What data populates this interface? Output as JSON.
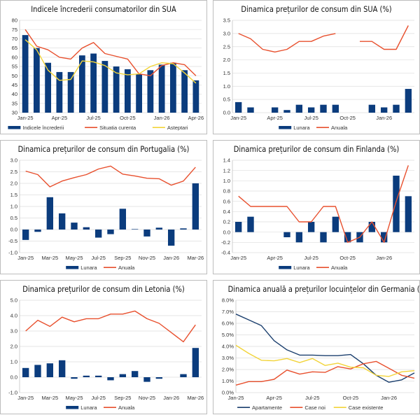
{
  "chart_data": [
    {
      "type": "bar+line",
      "title": "Indicele încrederii consumatorilor din SUA",
      "categories": [
        "Jan-25",
        "Feb-25",
        "Mar-25",
        "Apr-25",
        "May-25",
        "Jun-25",
        "Jul-25",
        "Aug-25",
        "Sep-25",
        "Oct-25",
        "Nov-25",
        "Dec-25",
        "Jan-26",
        "Feb-26",
        "Mar-26",
        "Apr-26"
      ],
      "xtick_labels": [
        "Jan-25",
        "Apr-25",
        "Jul-25",
        "Oct-25",
        "Jan-26",
        "Apr-26"
      ],
      "ylim": [
        30,
        80
      ],
      "yticks": [
        "30",
        "35",
        "40",
        "45",
        "50",
        "55",
        "60",
        "65",
        "70",
        "75",
        "80"
      ],
      "grid": true,
      "legend": "bottom",
      "bars": [
        {
          "name": "Indicele încrederii",
          "color": "#0b3c7d",
          "values": [
            72,
            65,
            57,
            52,
            52,
            61,
            62,
            58,
            55,
            53.5,
            51,
            53,
            56,
            57,
            53,
            47.5
          ]
        }
      ],
      "lines": [
        {
          "name": "Situatia curenta",
          "color": "#e8502e",
          "values": [
            75,
            66,
            64,
            60,
            59,
            65,
            68,
            62,
            60.5,
            59,
            51,
            50,
            55.5,
            57,
            56,
            50
          ]
        },
        {
          "name": "Asteptari",
          "color": "#f2d43a",
          "values": [
            69.5,
            64,
            53,
            47.5,
            48,
            58,
            57.5,
            55.5,
            51.5,
            50.5,
            51,
            55,
            57,
            56.5,
            51.5,
            46
          ]
        }
      ]
    },
    {
      "type": "bar+line",
      "title": "Dinamica prețurilor de consum din SUA (%)",
      "categories": [
        "Jan-25",
        "Feb-25",
        "Mar-25",
        "Apr-25",
        "May-25",
        "Jun-25",
        "Jul-25",
        "Aug-25",
        "Sep-25",
        "Oct-25",
        "Nov-25",
        "Dec-25",
        "Jan-26",
        "Feb-26",
        "Mar-26"
      ],
      "xtick_labels": [
        "Jan-25",
        "Apr-25",
        "Jul-25",
        "Oct-25",
        "Jan-26"
      ],
      "ylim": [
        0,
        3.5
      ],
      "yticks": [
        "0.0",
        "0.5",
        "1.0",
        "1.5",
        "2.0",
        "2.5",
        "3.0",
        "3.5"
      ],
      "grid": true,
      "legend": "bottom",
      "bars": [
        {
          "name": "Lunara",
          "color": "#0b3c7d",
          "values": [
            0.4,
            0.2,
            null,
            0.2,
            0.1,
            0.3,
            0.2,
            0.3,
            0.3,
            null,
            null,
            0.3,
            0.2,
            0.3,
            0.9
          ]
        }
      ],
      "lines": [
        {
          "name": "Anuala",
          "color": "#e8502e",
          "values": [
            3.0,
            2.8,
            2.4,
            2.3,
            2.4,
            2.7,
            2.7,
            2.9,
            3.0,
            null,
            2.7,
            2.7,
            2.4,
            2.4,
            3.3
          ]
        }
      ]
    },
    {
      "type": "bar+line",
      "title": "Dinamica prețurilor de consum din Portugalia (%)",
      "categories": [
        "Jan-25",
        "Feb-25",
        "Mar-25",
        "Apr-25",
        "May-25",
        "Jun-25",
        "Jul-25",
        "Aug-25",
        "Sep-25",
        "Oct-25",
        "Nov-25",
        "Dec-25",
        "Jan-26",
        "Feb-26",
        "Mar-26"
      ],
      "xtick_labels": [
        "Jan-25",
        "Mar-25",
        "May-25",
        "Jul-25",
        "Sep-25",
        "Nov-25",
        "Jan-26",
        "Mar-26"
      ],
      "ylim": [
        -1,
        3
      ],
      "yticks": [
        "-1.0",
        "-0.5",
        "0.0",
        "0.5",
        "1.0",
        "1.5",
        "2.0",
        "2.5",
        "3.0"
      ],
      "grid": true,
      "legend": "bottom",
      "bars": [
        {
          "name": "Lunara",
          "color": "#0b3c7d",
          "values": [
            -0.45,
            -0.1,
            1.4,
            0.7,
            0.3,
            0.1,
            -0.35,
            -0.2,
            0.9,
            0.02,
            -0.3,
            0.08,
            -0.7,
            0.05,
            2.0
          ]
        }
      ],
      "lines": [
        {
          "name": "Anuala",
          "color": "#e8502e",
          "values": [
            2.53,
            2.38,
            1.85,
            2.1,
            2.25,
            2.38,
            2.62,
            2.75,
            2.4,
            2.32,
            2.22,
            2.2,
            1.92,
            2.1,
            2.7
          ]
        }
      ]
    },
    {
      "type": "bar+line",
      "title": "Dinamica prețurilor de consum din Finlanda (%)",
      "categories": [
        "Jan-25",
        "Feb-25",
        "Mar-25",
        "Apr-25",
        "May-25",
        "Jun-25",
        "Jul-25",
        "Aug-25",
        "Sep-25",
        "Oct-25",
        "Nov-25",
        "Dec-25",
        "Jan-26",
        "Feb-26",
        "Mar-26"
      ],
      "xtick_labels": [
        "Jan-25",
        "Apr-25",
        "Jul-25",
        "Oct-25",
        "Jan-26"
      ],
      "ylim": [
        -0.4,
        1.4
      ],
      "yticks": [
        "-0.4",
        "-0.2",
        "0.0",
        "0.2",
        "0.4",
        "0.6",
        "0.8",
        "1.0",
        "1.2",
        "1.4"
      ],
      "grid": true,
      "legend": "bottom",
      "bars": [
        {
          "name": "Lunara",
          "color": "#0b3c7d",
          "values": [
            0.2,
            0.3,
            null,
            null,
            -0.1,
            -0.2,
            0.2,
            -0.2,
            0.3,
            -0.2,
            -0.2,
            0.2,
            -0.2,
            1.1,
            0.7
          ]
        }
      ],
      "lines": [
        {
          "name": "Anuala",
          "color": "#e8502e",
          "values": [
            0.7,
            0.5,
            0.5,
            0.5,
            0.5,
            0.2,
            0.2,
            0.5,
            0.5,
            -0.2,
            -0.1,
            0.2,
            -0.2,
            0.6,
            1.3
          ]
        }
      ]
    },
    {
      "type": "bar+line",
      "title": "Dinamica prețurilor de consum din Letonia (%)",
      "categories": [
        "Jan-25",
        "Feb-25",
        "Mar-25",
        "Apr-25",
        "May-25",
        "Jun-25",
        "Jul-25",
        "Aug-25",
        "Sep-25",
        "Oct-25",
        "Nov-25",
        "Dec-25",
        "Jan-26",
        "Feb-26",
        "Mar-26"
      ],
      "xtick_labels": [
        "Jan-25",
        "Mar-25",
        "May-25",
        "Jul-25",
        "Sep-25",
        "Nov-25",
        "Jan-26",
        "Mar-26"
      ],
      "ylim": [
        -1,
        5
      ],
      "yticks": [
        "-1.0",
        "0.0",
        "1.0",
        "2.0",
        "3.0",
        "4.0",
        "5.0"
      ],
      "grid": true,
      "legend": "bottom",
      "bars": [
        {
          "name": "Lunara",
          "color": "#0b3c7d",
          "values": [
            0.6,
            0.8,
            0.9,
            1.1,
            -0.1,
            0.1,
            0.1,
            -0.2,
            0.2,
            0.4,
            -0.3,
            -0.1,
            null,
            0.2,
            1.9
          ]
        }
      ],
      "lines": [
        {
          "name": "Anuala",
          "color": "#e8502e",
          "values": [
            3.0,
            3.7,
            3.3,
            3.9,
            3.6,
            3.8,
            3.8,
            4.1,
            4.1,
            4.3,
            3.8,
            3.5,
            2.9,
            2.3,
            3.4
          ]
        }
      ]
    },
    {
      "type": "line",
      "title": "Dinamica anuală a prețurilor locuințelor din Germania (%)",
      "categories": [
        "Jan-25",
        "Feb-25",
        "Mar-25",
        "Apr-25",
        "May-25",
        "Jun-25",
        "Jul-25",
        "Aug-25",
        "Sep-25",
        "Oct-25",
        "Nov-25",
        "Dec-25",
        "Jan-26",
        "Feb-26",
        "Mar-26"
      ],
      "xtick_labels": [
        "Jan-25",
        "Apr-25",
        "Jul-25",
        "Oct-25",
        "Jan-26"
      ],
      "ylim": [
        0,
        8
      ],
      "yticks": [
        "0.0%",
        "1.0%",
        "2.0%",
        "3.0%",
        "4.0%",
        "5.0%",
        "6.0%",
        "7.0%",
        "8.0%"
      ],
      "grid": true,
      "legend": "bottom",
      "bars": [],
      "lines": [
        {
          "name": "Apartamente",
          "color": "#1b3f6e",
          "values": [
            6.8,
            6.3,
            5.8,
            4.5,
            3.7,
            3.25,
            3.25,
            3.2,
            3.2,
            3.3,
            2.5,
            1.5,
            0.9,
            1.1,
            1.7
          ]
        },
        {
          "name": "Case noi",
          "color": "#e8502e",
          "values": [
            0.65,
            0.95,
            0.95,
            1.15,
            1.95,
            1.6,
            1.8,
            1.75,
            2.25,
            2.05,
            2.5,
            2.7,
            2.1,
            1.5,
            1.25
          ]
        },
        {
          "name": "Case existente",
          "color": "#f2d43a",
          "values": [
            4.1,
            3.4,
            2.8,
            2.75,
            2.95,
            2.6,
            2.95,
            2.35,
            2.55,
            2.2,
            2.15,
            1.5,
            1.4,
            1.8,
            1.9
          ]
        }
      ]
    }
  ]
}
